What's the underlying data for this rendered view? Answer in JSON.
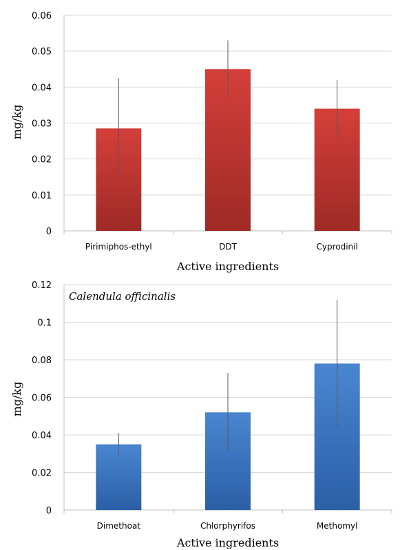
{
  "chart_data": [
    {
      "type": "bar",
      "annotation": "",
      "categories": [
        "Pirimiphos-ethyl",
        "DDT",
        "Cyprodinil"
      ],
      "values": [
        0.0285,
        0.045,
        0.034
      ],
      "error_low": [
        0.0145,
        0.037,
        0.026
      ],
      "error_high": [
        0.0425,
        0.053,
        0.042
      ],
      "xlabel": "Active ingredients",
      "ylabel": "mg/kg",
      "ylim": [
        0,
        0.06
      ],
      "yticks": [
        "0",
        "0.01",
        "0.02",
        "0.03",
        "0.04",
        "0.05",
        "0.06"
      ],
      "grid": true,
      "bar_color_top": "#d43f3a",
      "bar_color_bottom": "#9e2a26"
    },
    {
      "type": "bar",
      "annotation": "Calendula officinalis",
      "categories": [
        "Dimethoat",
        "Chlorphyrifos",
        "Methomyl"
      ],
      "values": [
        0.035,
        0.052,
        0.078
      ],
      "error_low": [
        0.029,
        0.031,
        0.044
      ],
      "error_high": [
        0.041,
        0.073,
        0.112
      ],
      "xlabel": "Active ingredients",
      "ylabel": "mg/kg",
      "ylim": [
        0,
        0.12
      ],
      "yticks": [
        "0",
        "0.02",
        "0.04",
        "0.06",
        "0.08",
        "0.1",
        "0.12"
      ],
      "grid": true,
      "bar_color_top": "#4a86d0",
      "bar_color_bottom": "#2b5fa6"
    }
  ]
}
